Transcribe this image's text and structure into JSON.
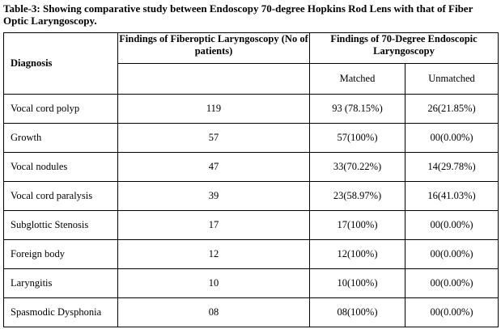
{
  "caption": "Table-3: Showing comparative study between Endoscopy 70-degree Hopkins Rod Lens with that of Fiber Optic Laryngoscopy.",
  "headers": {
    "diagnosis": "Diagnosis",
    "fiberoptic": "Findings of Fiberoptic Laryngoscopy (No of patients)",
    "endoscopic": "Findings of 70-Degree Endoscopic Laryngoscopy",
    "matched": "Matched",
    "unmatched": "Unmatched"
  },
  "rows": [
    {
      "diagnosis": "Vocal cord polyp",
      "fiberoptic": "119",
      "matched": "93 (78.15%)",
      "unmatched": "26(21.85%)"
    },
    {
      "diagnosis": "Growth",
      "fiberoptic": "57",
      "matched": "57(100%)",
      "unmatched": "00(0.00%)"
    },
    {
      "diagnosis": "Vocal nodules",
      "fiberoptic": "47",
      "matched": "33(70.22%)",
      "unmatched": "14(29.78%)"
    },
    {
      "diagnosis": "Vocal cord paralysis",
      "fiberoptic": "39",
      "matched": "23(58.97%)",
      "unmatched": "16(41.03%)"
    },
    {
      "diagnosis": "Subglottic Stenosis",
      "fiberoptic": "17",
      "matched": "17(100%)",
      "unmatched": "00(0.00%)"
    },
    {
      "diagnosis": "Foreign body",
      "fiberoptic": "12",
      "matched": "12(100%)",
      "unmatched": "00(0.00%)"
    },
    {
      "diagnosis": "Laryngitis",
      "fiberoptic": "10",
      "matched": "10(100%)",
      "unmatched": "00(0.00%)"
    },
    {
      "diagnosis": "Spasmodic Dysphonia",
      "fiberoptic": "08",
      "matched": "08(100%)",
      "unmatched": "00(0.00%)"
    }
  ]
}
